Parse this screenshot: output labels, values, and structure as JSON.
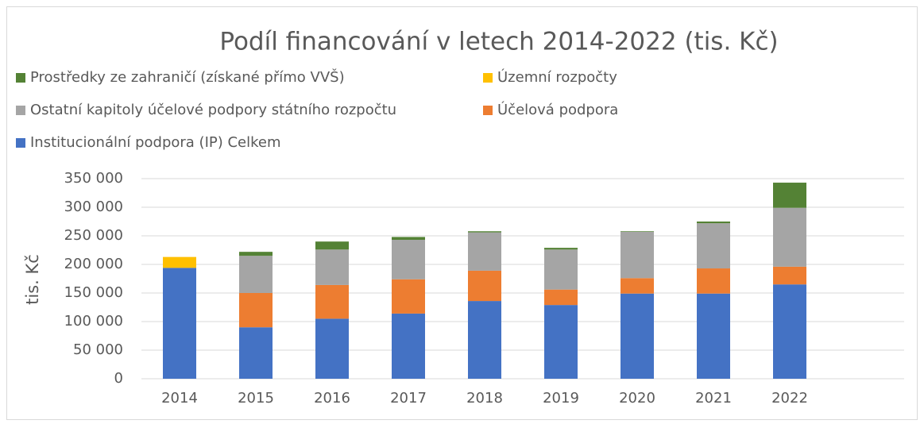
{
  "chart_data": {
    "type": "stacked_bar",
    "title": "Podíl financování v letech 2014-2022 (tis. Kč)",
    "y_label": "tis. Kč",
    "categories": [
      "2014",
      "2015",
      "2016",
      "2017",
      "2018",
      "2019",
      "2020",
      "2021",
      "2022",
      null
    ],
    "series": [
      {
        "name": "Institucionální podpora (IP) Celkem",
        "color": "#4472c4",
        "values": [
          194000,
          90000,
          105000,
          114000,
          136000,
          129000,
          149000,
          149000,
          165000,
          null
        ]
      },
      {
        "name": "Účelová podpora",
        "color": "#ed7d31",
        "values": [
          0,
          60000,
          59000,
          60000,
          53000,
          27000,
          27000,
          44000,
          31000,
          null
        ]
      },
      {
        "name": "Ostatní kapitoly účelové podpory státního rozpočtu",
        "color": "#a5a5a5",
        "values": [
          0,
          65000,
          62000,
          69000,
          67000,
          70000,
          81000,
          79000,
          103000,
          null
        ]
      },
      {
        "name": "Územní rozpočty",
        "color": "#ffc000",
        "values": [
          19000,
          0,
          0,
          0,
          0,
          0,
          0,
          0,
          0,
          null
        ]
      },
      {
        "name": "Prostředky ze zahraničí (získané přímo VVŠ)",
        "color": "#548235",
        "values": [
          0,
          7000,
          14000,
          5000,
          2000,
          3000,
          1000,
          3000,
          44000,
          null
        ]
      }
    ],
    "ylim": [
      0,
      350000
    ],
    "yticks": [
      0,
      {
        "value": 50000,
        "label": "50 000"
      },
      {
        "value": 100000,
        "label": "100 000"
      },
      {
        "value": 150000,
        "label": "150 000"
      },
      {
        "value": 200000,
        "label": "200 000"
      },
      {
        "value": 250000,
        "label": "250 000"
      },
      {
        "value": 300000,
        "label": "300 000"
      },
      {
        "value": 350000,
        "label": "350 000"
      }
    ],
    "grid": true,
    "legend": "top"
  }
}
